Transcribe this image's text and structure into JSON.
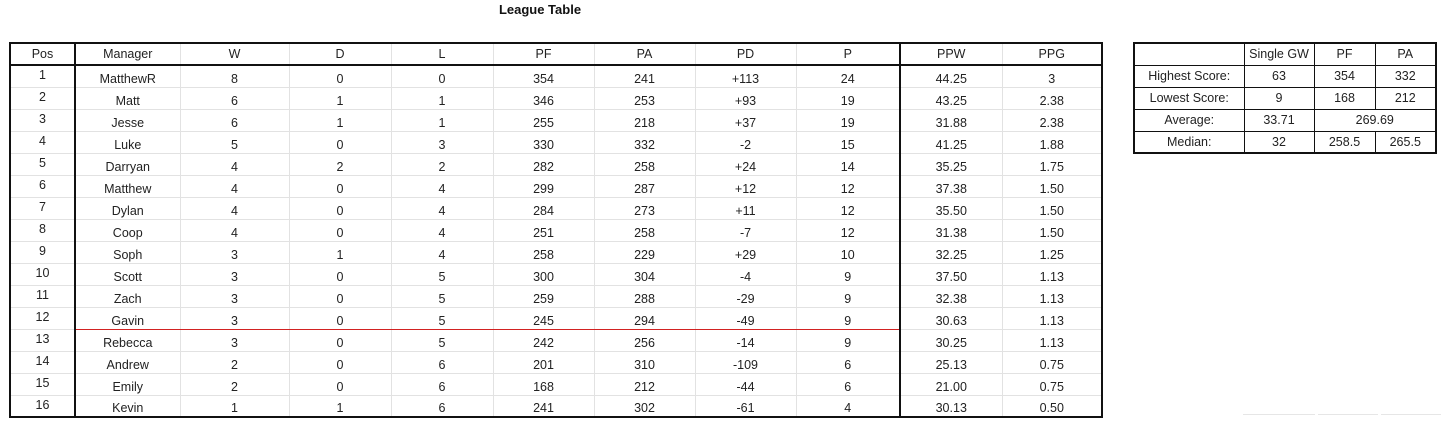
{
  "title": "League Table",
  "league": {
    "headers": [
      "Pos",
      "Manager",
      "W",
      "D",
      "L",
      "PF",
      "PA",
      "PD",
      "P",
      "PPW",
      "PPG"
    ],
    "rows": [
      [
        "1",
        "MatthewR",
        "8",
        "0",
        "0",
        "354",
        "241",
        "+113",
        "24",
        "44.25",
        "3"
      ],
      [
        "2",
        "Matt",
        "6",
        "1",
        "1",
        "346",
        "253",
        "+93",
        "19",
        "43.25",
        "2.38"
      ],
      [
        "3",
        "Jesse",
        "6",
        "1",
        "1",
        "255",
        "218",
        "+37",
        "19",
        "31.88",
        "2.38"
      ],
      [
        "4",
        "Luke",
        "5",
        "0",
        "3",
        "330",
        "332",
        "-2",
        "15",
        "41.25",
        "1.88"
      ],
      [
        "5",
        "Darryan",
        "4",
        "2",
        "2",
        "282",
        "258",
        "+24",
        "14",
        "35.25",
        "1.75"
      ],
      [
        "6",
        "Matthew",
        "4",
        "0",
        "4",
        "299",
        "287",
        "+12",
        "12",
        "37.38",
        "1.50"
      ],
      [
        "7",
        "Dylan",
        "4",
        "0",
        "4",
        "284",
        "273",
        "+11",
        "12",
        "35.50",
        "1.50"
      ],
      [
        "8",
        "Coop",
        "4",
        "0",
        "4",
        "251",
        "258",
        "-7",
        "12",
        "31.38",
        "1.50"
      ],
      [
        "9",
        "Soph",
        "3",
        "1",
        "4",
        "258",
        "229",
        "+29",
        "10",
        "32.25",
        "1.25"
      ],
      [
        "10",
        "Scott",
        "3",
        "0",
        "5",
        "300",
        "304",
        "-4",
        "9",
        "37.50",
        "1.13"
      ],
      [
        "11",
        "Zach",
        "3",
        "0",
        "5",
        "259",
        "288",
        "-29",
        "9",
        "32.38",
        "1.13"
      ],
      [
        "12",
        "Gavin",
        "3",
        "0",
        "5",
        "245",
        "294",
        "-49",
        "9",
        "30.63",
        "1.13"
      ],
      [
        "13",
        "Rebecca",
        "3",
        "0",
        "5",
        "242",
        "256",
        "-14",
        "9",
        "30.25",
        "1.13"
      ],
      [
        "14",
        "Andrew",
        "2",
        "0",
        "6",
        "201",
        "310",
        "-109",
        "6",
        "25.13",
        "0.75"
      ],
      [
        "15",
        "Emily",
        "2",
        "0",
        "6",
        "168",
        "212",
        "-44",
        "6",
        "21.00",
        "0.75"
      ],
      [
        "16",
        "Kevin",
        "1",
        "1",
        "6",
        "241",
        "302",
        "-61",
        "4",
        "30.13",
        "0.50"
      ]
    ],
    "cutoff_after_row": 12,
    "cutoff_color": "#d22222"
  },
  "stats": {
    "headers": [
      "",
      "Single GW",
      "PF",
      "PA"
    ],
    "highest": {
      "label": "Highest Score:",
      "gw": "63",
      "pf": "354",
      "pa": "332"
    },
    "lowest": {
      "label": "Lowest Score:",
      "gw": "9",
      "pf": "168",
      "pa": "212"
    },
    "average": {
      "label": "Average:",
      "gw": "33.71",
      "pfpa": "269.69"
    },
    "median": {
      "label": "Median:",
      "gw": "32",
      "pf": "258.5",
      "pa": "265.5"
    }
  }
}
